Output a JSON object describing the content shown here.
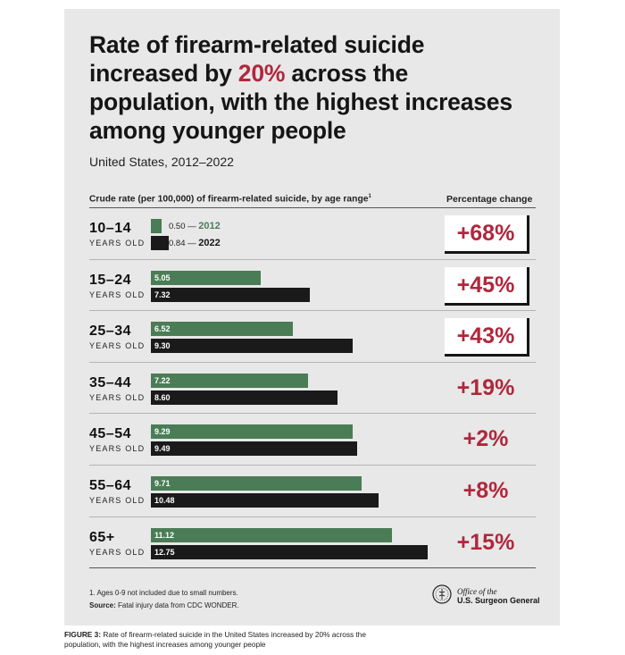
{
  "header": {
    "title_part1": "Rate of firearm-related suicide increased by ",
    "title_accent": "20%",
    "title_part2": " across the population, with the highest increases among younger people",
    "subtitle": "United States, 2012–2022"
  },
  "columns": {
    "left": "Crude rate (per 100,000) of firearm-related suicide, by age range",
    "left_marker": "1",
    "right": "Percentage change"
  },
  "legend": {
    "dash": "—",
    "label_2012": "2012",
    "label_2022": "2022"
  },
  "chart_data": {
    "type": "bar",
    "orientation": "horizontal",
    "categories": [
      "10–14",
      "15–24",
      "25–34",
      "35–44",
      "45–54",
      "55–64",
      "65+"
    ],
    "category_unit": "YEARS OLD",
    "series": [
      {
        "name": "2012",
        "values": [
          0.5,
          5.05,
          6.52,
          7.22,
          9.29,
          9.71,
          11.12
        ],
        "labels": [
          "0.50",
          "5.05",
          "6.52",
          "7.22",
          "9.29",
          "9.71",
          "11.12"
        ],
        "color": "#4a7d56"
      },
      {
        "name": "2022",
        "values": [
          0.84,
          7.32,
          9.3,
          8.6,
          9.49,
          10.48,
          12.75
        ],
        "labels": [
          "0.84",
          "7.32",
          "9.30",
          "8.60",
          "9.49",
          "10.48",
          "12.75"
        ],
        "color": "#1a1a1a"
      }
    ],
    "percentage_change": [
      "+68%",
      "+45%",
      "+43%",
      "+19%",
      "+2%",
      "+8%",
      "+15%"
    ],
    "highlighted_rows": [
      0,
      1,
      2
    ],
    "xlim": [
      0,
      12.75
    ],
    "grid": false,
    "accent_color": "#b0273c"
  },
  "footer": {
    "footnote": "1. Ages 0-9 not included due to small numbers.",
    "source_label": "Source:",
    "source_text": " Fatal injury data from CDC WONDER.",
    "org_line1": "Office of the",
    "org_line2": "U.S. Surgeon General",
    "logo_icon": "surgeon-general-seal-icon"
  },
  "caption": {
    "label": "FIGURE 3:",
    "text": " Rate of firearm-related suicide in the United States increased by 20% across the population, with the highest increases among younger people"
  }
}
